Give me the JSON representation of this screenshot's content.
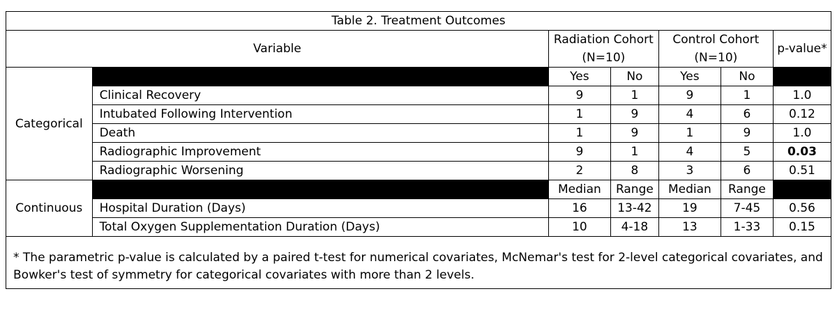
{
  "title": "Table 2. Treatment Outcomes",
  "header": {
    "variable": "Variable",
    "radiation": "Radiation Cohort (N=10)",
    "control": "Control Cohort (N=10)",
    "pvalue": "p-value*"
  },
  "categorical": {
    "group_label": "Categorical",
    "subheader": [
      "Yes",
      "No",
      "Yes",
      "No"
    ],
    "rows": [
      {
        "label": "Clinical Recovery",
        "r_yes": "9",
        "r_no": "1",
        "c_yes": "9",
        "c_no": "1",
        "p": "1.0"
      },
      {
        "label": "Intubated Following Intervention",
        "r_yes": "1",
        "r_no": "9",
        "c_yes": "4",
        "c_no": "6",
        "p": "0.12"
      },
      {
        "label": "Death",
        "r_yes": "1",
        "r_no": "9",
        "c_yes": "1",
        "c_no": "9",
        "p": "1.0"
      },
      {
        "label": "Radiographic Improvement",
        "r_yes": "9",
        "r_no": "1",
        "c_yes": "4",
        "c_no": "5",
        "p": "0.03"
      },
      {
        "label": "Radiographic Worsening",
        "r_yes": "2",
        "r_no": "8",
        "c_yes": "3",
        "c_no": "6",
        "p": "0.51"
      }
    ]
  },
  "continuous": {
    "group_label": "Continuous",
    "subheader": [
      "Median",
      "Range",
      "Median",
      "Range"
    ],
    "rows": [
      {
        "label": "Hospital Duration (Days)",
        "r_median": "16",
        "r_range": "13-42",
        "c_median": "19",
        "c_range": "7-45",
        "p": "0.56"
      },
      {
        "label": "Total Oxygen Supplementation Duration (Days)",
        "r_median": "10",
        "r_range": "4-18",
        "c_median": "13",
        "c_range": "1-33",
        "p": "0.15"
      }
    ]
  },
  "footnote": "*  The parametric p-value is calculated by a paired t-test for numerical covariates, McNemar's test for 2-level categorical covariates, and Bowker's test of symmetry for categorical covariates with more than 2 levels."
}
